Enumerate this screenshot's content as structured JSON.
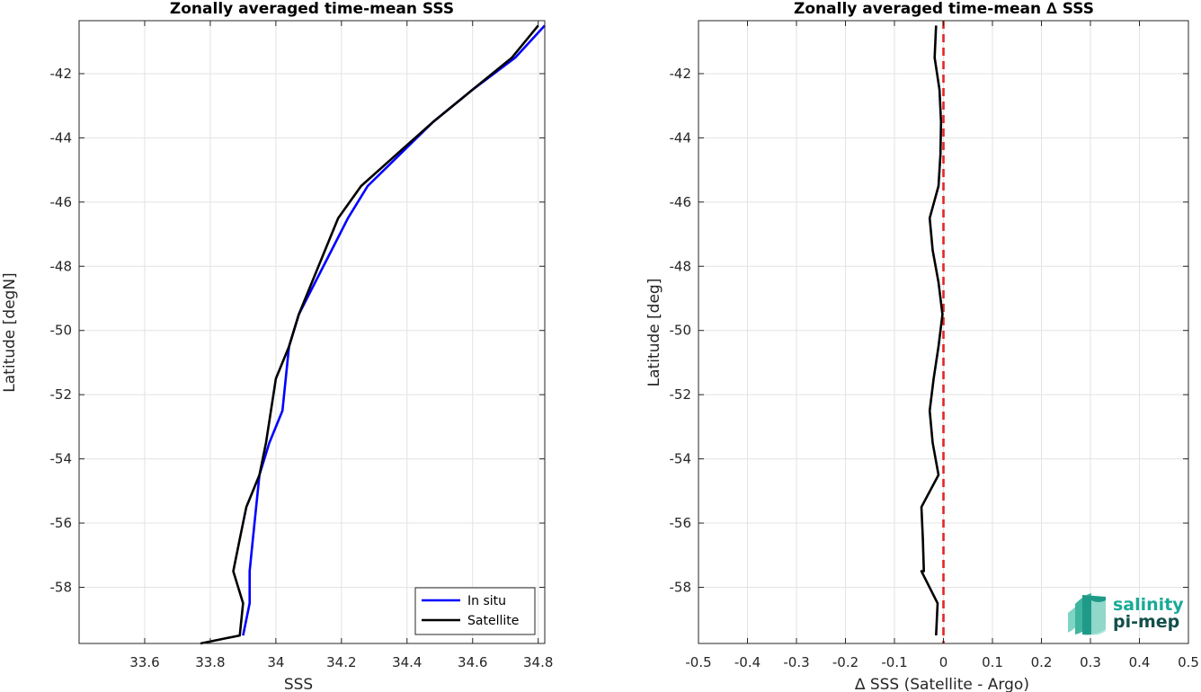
{
  "chart_data": [
    {
      "type": "line",
      "title": "Zonally averaged time-mean SSS",
      "xlabel": "SSS",
      "ylabel": "Latitude [degN]",
      "xlim": [
        33.4,
        34.82
      ],
      "ylim": [
        -59.75,
        -40.35
      ],
      "grid": true,
      "xticks": [
        "33.6",
        "33.8",
        "34",
        "34.2",
        "34.4",
        "34.6",
        "34.8"
      ],
      "yticks": [
        "-42",
        "-44",
        "-46",
        "-48",
        "-50",
        "-52",
        "-54",
        "-56",
        "-58"
      ],
      "legend": {
        "placement": "bottom-right"
      },
      "series": [
        {
          "name": "In situ",
          "color": "#0000ff",
          "x": [
            34.82,
            34.73,
            34.6,
            34.48,
            34.38,
            34.28,
            34.22,
            34.17,
            34.12,
            34.07,
            34.04,
            34.02,
            33.98,
            33.95,
            33.93,
            33.92,
            33.92,
            33.9
          ],
          "y": [
            -40.5,
            -41.5,
            -42.5,
            -43.5,
            -44.5,
            -45.5,
            -46.5,
            -47.5,
            -48.5,
            -49.5,
            -50.5,
            -52.5,
            -53.5,
            -54.5,
            -56.5,
            -57.5,
            -58.5,
            -59.5
          ]
        },
        {
          "name": "Satellite",
          "color": "#000000",
          "x": [
            34.8,
            34.72,
            34.6,
            34.48,
            34.37,
            34.26,
            34.19,
            34.15,
            34.11,
            34.07,
            34.04,
            34.0,
            33.97,
            33.95,
            33.91,
            33.89,
            33.87,
            33.9,
            33.89,
            33.77
          ],
          "y": [
            -40.5,
            -41.5,
            -42.5,
            -43.5,
            -44.5,
            -45.5,
            -46.5,
            -47.5,
            -48.5,
            -49.5,
            -50.5,
            -51.5,
            -53.5,
            -54.5,
            -55.5,
            -56.5,
            -57.5,
            -58.5,
            -59.5,
            -59.75
          ]
        }
      ]
    },
    {
      "type": "line",
      "title": "Zonally averaged time-mean ∆ SSS",
      "xlabel": "∆ SSS (Satellite - Argo)",
      "ylabel": "Latitude [deg]",
      "xlim": [
        -0.5,
        0.5
      ],
      "ylim": [
        -59.75,
        -40.35
      ],
      "grid": true,
      "xticks": [
        "-0.5",
        "-0.4",
        "-0.3",
        "-0.2",
        "-0.1",
        "0",
        "0.1",
        "0.2",
        "0.3",
        "0.4",
        "0.5"
      ],
      "yticks": [
        "-42",
        "-44",
        "-46",
        "-48",
        "-50",
        "-52",
        "-54",
        "-56",
        "-58"
      ],
      "reference_line": {
        "x": 0,
        "color": "#e32626",
        "style": "dashed"
      },
      "series": [
        {
          "color": "#000000",
          "x": [
            -0.015,
            -0.018,
            -0.008,
            -0.005,
            -0.006,
            -0.01,
            -0.028,
            -0.022,
            -0.01,
            -0.002,
            -0.01,
            -0.02,
            -0.028,
            -0.022,
            -0.01,
            -0.045,
            -0.042,
            -0.04,
            -0.045,
            -0.012,
            -0.015
          ],
          "y": [
            -40.5,
            -41.5,
            -42.5,
            -43.5,
            -44.5,
            -45.5,
            -46.5,
            -47.5,
            -48.5,
            -49.5,
            -50.5,
            -51.5,
            -52.5,
            -53.5,
            -54.5,
            -55.5,
            -56.5,
            -57.5,
            -57.5,
            -58.5,
            -59.5
          ]
        }
      ]
    }
  ],
  "logo": {
    "line1": "salinity",
    "line2": "pi-mep",
    "color1": "#1aaa96",
    "color2": "#134f4b"
  }
}
